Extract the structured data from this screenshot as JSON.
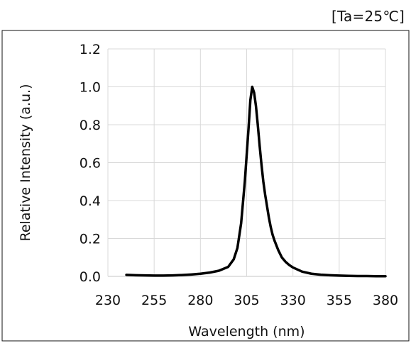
{
  "condition": "[Ta=25℃]",
  "chart_data": {
    "type": "line",
    "title": "",
    "xlabel": "Wavelength (nm)",
    "ylabel": "Relative Intensity (a.u.)",
    "xlim": [
      230,
      380
    ],
    "ylim": [
      0,
      1.2
    ],
    "x_ticks": [
      230,
      255,
      280,
      305,
      330,
      355,
      380
    ],
    "x_tick_labels": [
      "230",
      "255",
      "280",
      "305",
      "330",
      "355",
      "380"
    ],
    "y_ticks": [
      0,
      0.2,
      0.4,
      0.6,
      0.8,
      1.0,
      1.2
    ],
    "y_tick_labels": [
      "0.0",
      "0.2",
      "0.4",
      "0.6",
      "0.8",
      "1.0",
      "1.2"
    ],
    "grid": true,
    "legend": "none",
    "series": [
      {
        "color": "#000000",
        "x": [
          240,
          245,
          250,
          255,
          260,
          265,
          270,
          275,
          280,
          285,
          290,
          295,
          298,
          300,
          302,
          304,
          306,
          307,
          308,
          309,
          310,
          311,
          312,
          313,
          314,
          315,
          316,
          317,
          318,
          319,
          320,
          322,
          324,
          326,
          328,
          330,
          335,
          340,
          345,
          350,
          355,
          360,
          365,
          370,
          375,
          380
        ],
        "y": [
          0.008,
          0.006,
          0.005,
          0.004,
          0.004,
          0.005,
          0.007,
          0.01,
          0.014,
          0.02,
          0.03,
          0.05,
          0.09,
          0.15,
          0.28,
          0.5,
          0.78,
          0.93,
          1.0,
          0.97,
          0.9,
          0.8,
          0.69,
          0.59,
          0.5,
          0.43,
          0.37,
          0.31,
          0.26,
          0.22,
          0.19,
          0.14,
          0.1,
          0.077,
          0.06,
          0.047,
          0.025,
          0.014,
          0.009,
          0.006,
          0.004,
          0.003,
          0.002,
          0.002,
          0.001,
          0.001
        ]
      }
    ]
  }
}
